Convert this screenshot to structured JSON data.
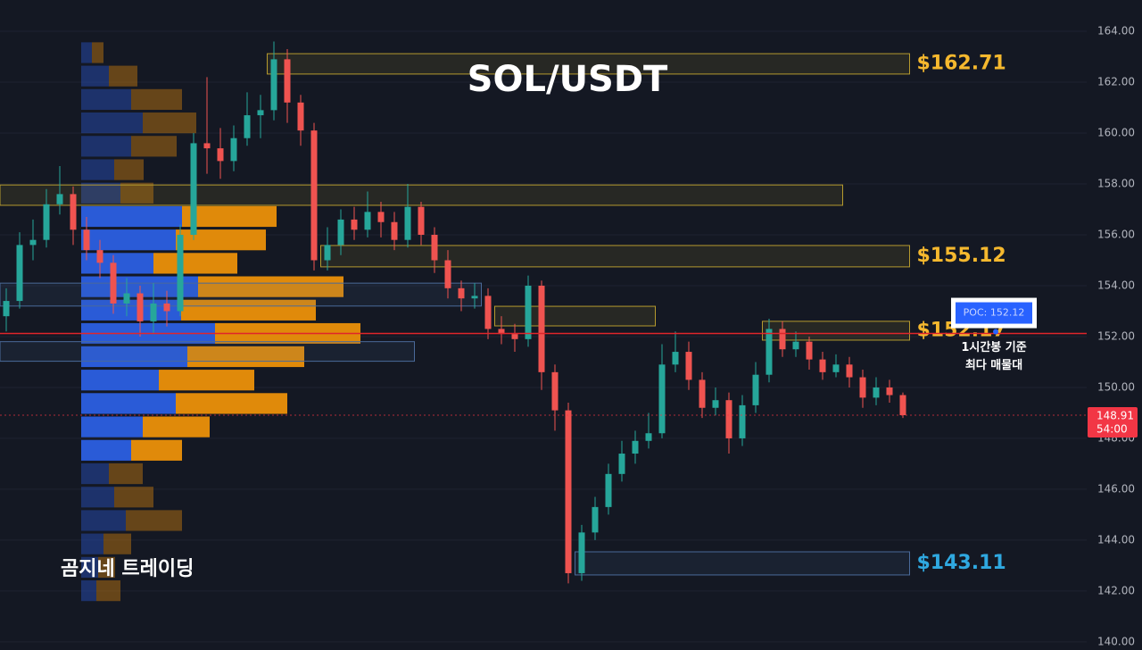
{
  "chart_data": {
    "type": "candlestick",
    "title": "SOL/USDT",
    "watermark": "곰지네 트레이딩",
    "ylim": [
      139.68,
      165.23
    ],
    "yticks": [
      {
        "value": 140,
        "label": "140.00"
      },
      {
        "value": 142,
        "label": "142.00"
      },
      {
        "value": 144,
        "label": "144.00"
      },
      {
        "value": 146,
        "label": "146.00"
      },
      {
        "value": 148,
        "label": "148.00"
      },
      {
        "value": 150,
        "label": "150.00"
      },
      {
        "value": 152,
        "label": "152.00"
      },
      {
        "value": 154,
        "label": "154.00"
      },
      {
        "value": 156,
        "label": "156.00"
      },
      {
        "value": 158,
        "label": "158.00"
      },
      {
        "value": 160,
        "label": "160.00"
      },
      {
        "value": 162,
        "label": "162.00"
      },
      {
        "value": 164,
        "label": "164.00"
      }
    ],
    "grid": true,
    "up_color": "#26a69a",
    "down_color": "#ef5350",
    "open": [
      152.8,
      153.4,
      155.6,
      155.8,
      157.2,
      157.6,
      156.2,
      155.4,
      154.9,
      153.3,
      153.7,
      152.6,
      153.3,
      153.0,
      156.0,
      159.6,
      159.4,
      158.9,
      159.8,
      160.7,
      160.9,
      162.9,
      161.2,
      160.1,
      155.0,
      155.6,
      156.6,
      156.2,
      156.9,
      156.5,
      155.8,
      157.1,
      156.0,
      155.0,
      153.9,
      153.5,
      153.6,
      152.3,
      152.1,
      151.9,
      154.0,
      150.6,
      149.1,
      142.7,
      144.3,
      145.3,
      146.6,
      147.4,
      147.9,
      148.2,
      150.9,
      151.4,
      150.3,
      149.2,
      149.5,
      148.0,
      149.3,
      150.5,
      152.3,
      151.5,
      151.8,
      151.1,
      150.6,
      150.9,
      150.4,
      149.6,
      150.0,
      149.7
    ],
    "high": [
      153.9,
      156.1,
      156.6,
      157.8,
      158.7,
      157.9,
      156.7,
      155.8,
      155.2,
      154.3,
      154.0,
      154.1,
      153.8,
      156.4,
      160.0,
      162.2,
      160.2,
      160.3,
      161.6,
      161.5,
      163.6,
      163.3,
      161.5,
      160.4,
      156.3,
      157.0,
      157.1,
      157.7,
      157.3,
      156.9,
      158.0,
      157.3,
      156.3,
      155.4,
      154.2,
      154.1,
      153.9,
      152.8,
      152.5,
      154.4,
      154.2,
      150.9,
      149.4,
      144.6,
      145.7,
      147.0,
      147.9,
      148.3,
      149.0,
      151.7,
      152.2,
      151.8,
      150.6,
      150.0,
      149.8,
      149.7,
      151.0,
      152.7,
      152.6,
      152.2,
      152.0,
      151.4,
      151.3,
      151.2,
      150.7,
      150.4,
      150.3,
      149.8
    ],
    "low": [
      152.2,
      153.1,
      155.0,
      155.5,
      156.8,
      155.6,
      155.0,
      154.3,
      152.9,
      152.8,
      152.0,
      152.1,
      152.4,
      152.8,
      155.8,
      158.4,
      158.2,
      158.5,
      159.5,
      159.8,
      160.5,
      160.4,
      159.5,
      154.6,
      154.6,
      155.2,
      155.8,
      155.9,
      155.9,
      155.4,
      155.5,
      155.6,
      154.5,
      153.5,
      153.0,
      153.1,
      151.9,
      151.7,
      151.4,
      151.6,
      149.9,
      148.3,
      142.3,
      142.4,
      144.0,
      145.0,
      146.3,
      147.0,
      147.6,
      148.0,
      150.6,
      149.9,
      148.8,
      148.9,
      147.4,
      147.7,
      149.0,
      150.2,
      151.2,
      151.2,
      150.7,
      150.3,
      150.4,
      150.0,
      149.2,
      149.3,
      149.4,
      148.8
    ],
    "close": [
      153.4,
      155.6,
      155.8,
      157.2,
      157.6,
      156.2,
      155.4,
      154.9,
      153.3,
      153.7,
      152.6,
      153.3,
      153.0,
      156.0,
      159.6,
      159.4,
      158.9,
      159.8,
      160.7,
      160.9,
      162.9,
      161.2,
      160.1,
      155.0,
      155.6,
      156.6,
      156.2,
      156.9,
      156.5,
      155.8,
      157.1,
      156.0,
      155.0,
      153.9,
      153.5,
      153.6,
      152.3,
      152.1,
      151.9,
      154.0,
      150.6,
      149.1,
      142.7,
      144.3,
      145.3,
      146.6,
      147.4,
      147.9,
      148.2,
      150.9,
      151.4,
      150.3,
      149.2,
      149.5,
      148.0,
      149.3,
      150.5,
      152.3,
      151.5,
      151.8,
      151.1,
      150.6,
      150.9,
      150.4,
      149.6,
      150.0,
      149.7,
      148.91
    ],
    "profile": {
      "bins": [
        163.62,
        162.7,
        161.78,
        160.86,
        159.94,
        159.02,
        158.1,
        157.18,
        156.26,
        155.34,
        154.42,
        153.5,
        152.58,
        151.67,
        150.75,
        149.83,
        148.91,
        147.99,
        147.07,
        146.15,
        145.23,
        144.31,
        143.39,
        142.47,
        141.55
      ],
      "buy": [
        12,
        31,
        56,
        69,
        56,
        37,
        44,
        113,
        106,
        81,
        131,
        112,
        150,
        119,
        87,
        106,
        69,
        56,
        31,
        37,
        50,
        25,
        19,
        17
      ],
      "sell": [
        13,
        32,
        57,
        60,
        51,
        33,
        37,
        106,
        101,
        94,
        163,
        151,
        163,
        131,
        107,
        125,
        75,
        57,
        38,
        44,
        63,
        31,
        19,
        27
      ],
      "buy_color": "#2a5bd7",
      "sell_color": "#e08a0a"
    },
    "zones": [
      {
        "range": [
          153.2,
          154.1
        ],
        "from": 0,
        "to": 35,
        "color": "#4a6a9a"
      },
      {
        "range": [
          151.03,
          151.8
        ],
        "from": 0,
        "to": 30,
        "color": "#4a6a9a"
      },
      {
        "range": [
          157.16,
          157.96
        ],
        "from": 0,
        "to": 62,
        "color": "#b59a2e"
      },
      {
        "range": [
          162.32,
          163.12
        ],
        "from": 20,
        "to": 67,
        "color": "#b59a2e",
        "label": "$162.71",
        "label_color": "#f5b82e"
      },
      {
        "range": [
          154.74,
          155.58
        ],
        "from": 24,
        "to": 67,
        "color": "#b59a2e",
        "label": "$155.12",
        "label_color": "#f5b82e"
      },
      {
        "range": [
          152.42,
          153.19
        ],
        "from": 37,
        "to": 48,
        "color": "#b59a2e"
      },
      {
        "range": [
          151.86,
          152.6
        ],
        "from": 57,
        "to": 67,
        "color": "#b59a2e",
        "label": "$152.17",
        "label_color": "#f5b82e"
      },
      {
        "range": [
          142.63,
          143.54
        ],
        "from": 43,
        "to": 67,
        "color": "#4a6a9a",
        "label": "$143.11",
        "label_color": "#2fa8e0"
      }
    ],
    "poc": {
      "value": 152.12,
      "label": "POC: 152.12",
      "color": "#e0252b"
    },
    "annotation": [
      "1시간봉 기준",
      "최다 매물대"
    ],
    "last": {
      "value": 148.91,
      "label": "148.91",
      "countdown": "54:00",
      "color": "#f23645"
    }
  }
}
